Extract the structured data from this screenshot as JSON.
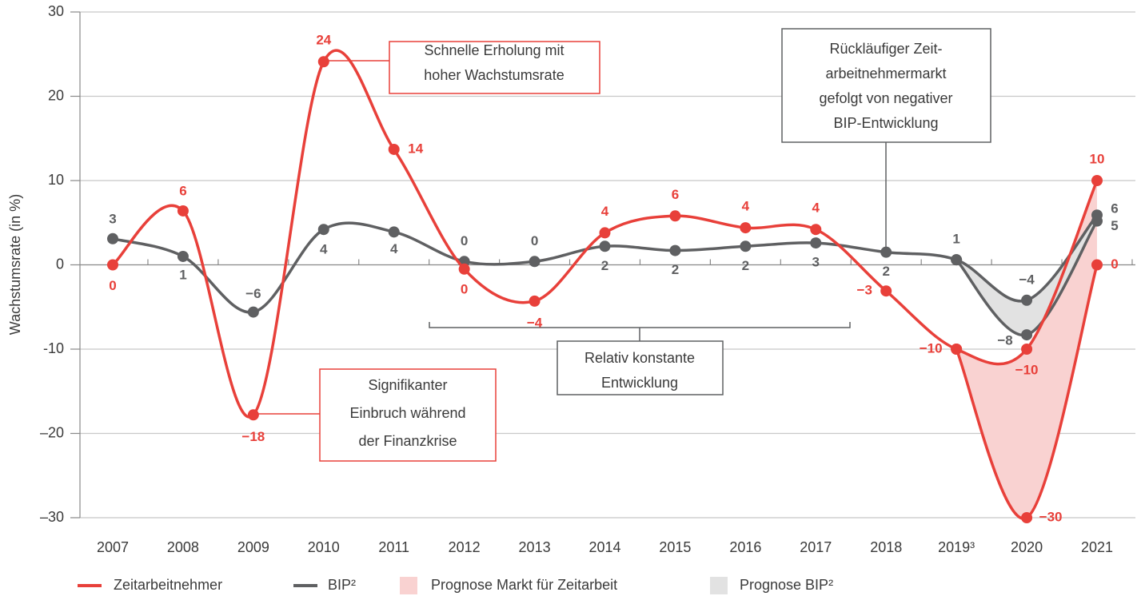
{
  "chart_data": {
    "type": "line",
    "y_label": "Wachstumsrate (in %)",
    "categories": [
      "2007",
      "2008",
      "2009",
      "2010",
      "2011",
      "2012",
      "2013",
      "2014",
      "2015",
      "2016",
      "2017",
      "2018",
      "2019³",
      "2020",
      "2021"
    ],
    "ylim": [
      -30,
      30
    ],
    "yticks": [
      30,
      20,
      10,
      0,
      {
        "value": -10,
        "label": "-10"
      },
      {
        "value": -20,
        "label": "–20"
      },
      {
        "value": -30,
        "label": "–30"
      }
    ],
    "grid": true,
    "series": [
      {
        "name": "Zeitarbeitnehmer",
        "color": "#e8403a",
        "values": [
          0,
          6.4,
          -17.8,
          24.1,
          13.7,
          -0.5,
          -4.3,
          3.8,
          5.8,
          4.4,
          4.2,
          -3.1,
          -10,
          -10,
          10
        ],
        "value_labels": [
          "0",
          "6",
          "−18",
          "24",
          "14",
          "0",
          "−4",
          "4",
          "6",
          "4",
          "4",
          "−3",
          "−10",
          "−10",
          "10"
        ]
      },
      {
        "name": "BIP²",
        "color": "#5f6062",
        "values": [
          3.1,
          1.0,
          -5.6,
          4.2,
          3.9,
          0.4,
          0.4,
          2.2,
          1.7,
          2.2,
          2.6,
          1.5,
          0.6,
          -4.2,
          5.9
        ],
        "value_labels": [
          "3",
          "1",
          "−6",
          "4",
          "4",
          "0",
          "0",
          "2",
          "2",
          "2",
          "3",
          "2",
          "1",
          "−4",
          "6"
        ]
      },
      {
        "name": "Prognose Markt für Zeitarbeit",
        "color": "#f9d2d1",
        "line_color": "#e8403a",
        "band_of": 0,
        "values": [
          null,
          null,
          null,
          null,
          null,
          null,
          null,
          null,
          null,
          null,
          null,
          null,
          -10,
          -30,
          0
        ],
        "value_labels": [
          null,
          null,
          null,
          null,
          null,
          null,
          null,
          null,
          null,
          null,
          null,
          null,
          null,
          "−30",
          "0"
        ]
      },
      {
        "name": "Prognose BIP²",
        "color": "#e2e2e2",
        "line_color": "#5f6062",
        "band_of": 1,
        "values": [
          null,
          null,
          null,
          null,
          null,
          null,
          null,
          null,
          null,
          null,
          null,
          null,
          0.6,
          -8.3,
          5.2
        ],
        "value_labels": [
          null,
          null,
          null,
          null,
          null,
          null,
          null,
          null,
          null,
          null,
          null,
          null,
          null,
          "−8",
          "5"
        ]
      }
    ],
    "annotations": [
      {
        "lines": [
          "Schnelle Erholung mit",
          "hoher Wachstumsrate"
        ]
      },
      {
        "lines": [
          "Signifikanter",
          "Einbruch während",
          "der Finanzkrise"
        ]
      },
      {
        "lines": [
          "Rückläufiger Zeit-",
          "arbeitnehmermarkt",
          "gefolgt von negativer",
          "BIP-Entwicklung"
        ]
      },
      {
        "lines": [
          "Relativ konstante",
          "Entwicklung"
        ]
      }
    ]
  }
}
